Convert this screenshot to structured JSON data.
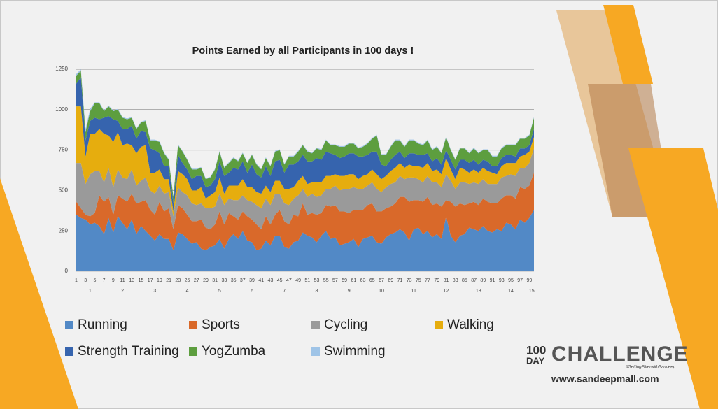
{
  "chart_data": {
    "type": "stacked_area",
    "title": "Points Earned by all Participants in 100 days !",
    "categories": [
      1,
      null,
      3,
      null,
      5,
      null,
      7,
      null,
      9,
      null,
      11,
      null,
      13,
      null,
      15,
      null,
      17,
      null,
      19,
      null,
      21,
      null,
      23,
      null,
      25,
      null,
      27,
      null,
      29,
      null,
      31,
      null,
      33,
      null,
      35,
      null,
      37,
      null,
      39,
      null,
      41,
      null,
      43,
      null,
      45,
      null,
      47,
      null,
      49,
      null,
      51,
      null,
      53,
      null,
      55,
      null,
      57,
      null,
      59,
      null,
      61,
      null,
      63,
      null,
      65,
      null,
      67,
      null,
      69,
      null,
      71,
      null,
      73,
      null,
      75,
      null,
      77,
      null,
      79,
      null,
      81,
      null,
      83,
      null,
      85,
      null,
      87,
      null,
      89,
      null,
      91,
      null,
      93,
      null,
      95,
      null,
      97,
      null,
      99,
      null
    ],
    "weeks": [
      1,
      2,
      3,
      4,
      5,
      6,
      7,
      8,
      9,
      10,
      11,
      12,
      13,
      14,
      15
    ],
    "ylim": [
      0,
      1250
    ],
    "yticks": [
      0,
      250,
      500,
      750,
      1000,
      1250
    ],
    "grid": true,
    "series": [
      {
        "name": "Running",
        "color": "#5289c6",
        "values": [
          350,
          330,
          320,
          290,
          300,
          280,
          230,
          330,
          240,
          340,
          300,
          260,
          320,
          230,
          280,
          250,
          220,
          190,
          230,
          200,
          200,
          130,
          240,
          230,
          200,
          170,
          180,
          140,
          130,
          150,
          160,
          200,
          140,
          200,
          230,
          200,
          250,
          190,
          180,
          130,
          140,
          190,
          160,
          220,
          220,
          150,
          140,
          180,
          190,
          240,
          220,
          210,
          180,
          220,
          250,
          200,
          210,
          160,
          170,
          180,
          200,
          150,
          200,
          210,
          220,
          180,
          170,
          210,
          230,
          240,
          260,
          240,
          190,
          260,
          270,
          230,
          250,
          210,
          230,
          200,
          340,
          220,
          180,
          220,
          230,
          270,
          260,
          250,
          280,
          250,
          240,
          260,
          250,
          300,
          290,
          260,
          320,
          300,
          330,
          380
        ]
      },
      {
        "name": "Sports",
        "color": "#d9692a",
        "values": [
          80,
          60,
          30,
          50,
          60,
          190,
          200,
          130,
          110,
          130,
          150,
          170,
          160,
          190,
          150,
          190,
          160,
          160,
          200,
          170,
          190,
          130,
          170,
          160,
          150,
          140,
          130,
          180,
          140,
          110,
          130,
          170,
          150,
          160,
          110,
          120,
          120,
          150,
          140,
          160,
          120,
          150,
          130,
          130,
          160,
          160,
          150,
          170,
          150,
          180,
          130,
          150,
          170,
          140,
          160,
          200,
          200,
          210,
          200,
          180,
          180,
          230,
          180,
          200,
          200,
          190,
          200,
          180,
          170,
          180,
          200,
          220,
          240,
          180,
          170,
          200,
          210,
          200,
          190,
          200,
          100,
          210,
          220,
          200,
          180,
          150,
          170,
          160,
          170,
          180,
          180,
          160,
          200,
          170,
          180,
          190,
          200,
          210,
          200,
          230
        ]
      },
      {
        "name": "Cycling",
        "color": "#9a9a9a",
        "values": [
          240,
          280,
          190,
          260,
          260,
          150,
          120,
          180,
          170,
          160,
          130,
          140,
          150,
          110,
          130,
          140,
          120,
          130,
          100,
          110,
          100,
          80,
          110,
          100,
          120,
          110,
          100,
          100,
          120,
          130,
          110,
          110,
          120,
          90,
          100,
          120,
          100,
          100,
          110,
          120,
          130,
          110,
          120,
          130,
          100,
          110,
          120,
          100,
          130,
          90,
          110,
          120,
          110,
          110,
          100,
          110,
          120,
          130,
          140,
          150,
          140,
          130,
          130,
          120,
          130,
          140,
          120,
          130,
          140,
          130,
          130,
          110,
          150,
          140,
          130,
          120,
          130,
          140,
          130,
          120,
          160,
          130,
          110,
          130,
          140,
          120,
          120,
          130,
          120,
          110,
          120,
          120,
          130,
          120,
          130,
          140,
          120,
          130,
          140,
          150
        ]
      },
      {
        "name": "Walking",
        "color": "#e6ad0e",
        "values": [
          350,
          350,
          170,
          250,
          230,
          260,
          300,
          200,
          280,
          230,
          200,
          220,
          150,
          200,
          210,
          200,
          110,
          130,
          100,
          90,
          80,
          30,
          100,
          110,
          100,
          80,
          90,
          100,
          60,
          80,
          90,
          100,
          70,
          80,
          90,
          90,
          100,
          80,
          90,
          80,
          90,
          80,
          80,
          80,
          80,
          90,
          100,
          70,
          90,
          80,
          80,
          70,
          90,
          80,
          80,
          80,
          70,
          90,
          80,
          90,
          80,
          60,
          80,
          70,
          80,
          90,
          80,
          70,
          80,
          90,
          80,
          70,
          80,
          70,
          80,
          90,
          80,
          70,
          80,
          80,
          100,
          70,
          60,
          90,
          80,
          70,
          80,
          70,
          70,
          80,
          70,
          60,
          70,
          80,
          70,
          80,
          70,
          80,
          70,
          70
        ]
      },
      {
        "name": "Strength Training",
        "color": "#3664ae",
        "values": [
          140,
          180,
          100,
          80,
          100,
          60,
          100,
          120,
          140,
          70,
          100,
          90,
          120,
          90,
          100,
          80,
          150,
          140,
          100,
          80,
          80,
          50,
          100,
          70,
          60,
          70,
          90,
          70,
          70,
          60,
          80,
          100,
          110,
          80,
          110,
          100,
          110,
          90,
          140,
          110,
          100,
          120,
          100,
          120,
          130,
          100,
          150,
          140,
          120,
          130,
          140,
          130,
          150,
          140,
          150,
          140,
          120,
          110,
          120,
          130,
          130,
          140,
          120,
          120,
          110,
          140,
          90,
          60,
          70,
          80,
          70,
          60,
          70,
          80,
          70,
          80,
          60,
          60,
          70,
          60,
          50,
          60,
          60,
          50,
          60,
          60,
          60,
          50,
          50,
          60,
          40,
          50,
          50,
          50,
          50,
          40,
          50,
          40,
          40,
          50
        ]
      },
      {
        "name": "YogZumba",
        "color": "#5d9e3f",
        "values": [
          50,
          40,
          50,
          60,
          90,
          100,
          40,
          60,
          50,
          70,
          70,
          60,
          50,
          60,
          50,
          70,
          50,
          60,
          70,
          80,
          40,
          40,
          60,
          70,
          60,
          60,
          40,
          50,
          50,
          50,
          60,
          60,
          50,
          60,
          60,
          50,
          50,
          60,
          60,
          60,
          50,
          50,
          60,
          60,
          60,
          50,
          50,
          50,
          60,
          60,
          60,
          50,
          60,
          60,
          70,
          50,
          60,
          70,
          60,
          60,
          60,
          50,
          60,
          70,
          80,
          100,
          60,
          70,
          80,
          90,
          70,
          70,
          80,
          80,
          70,
          60,
          80,
          70,
          70,
          70,
          80,
          60,
          60,
          70,
          70,
          60,
          70,
          70,
          60,
          70,
          60,
          60,
          60,
          60,
          60,
          70,
          60,
          60,
          60,
          70
        ]
      },
      {
        "name": "Swimming",
        "color": "#9fc4e7",
        "values": [
          10,
          10,
          20,
          15,
          5,
          5,
          5,
          5,
          5,
          5,
          5,
          5,
          5,
          5,
          5,
          5,
          5,
          5,
          5,
          5,
          5,
          5,
          5,
          5,
          5,
          5,
          5,
          5,
          5,
          5,
          5,
          5,
          5,
          5,
          5,
          5,
          5,
          5,
          5,
          5,
          5,
          5,
          5,
          5,
          5,
          5,
          5,
          5,
          5,
          5,
          5,
          5,
          5,
          5,
          5,
          5,
          5,
          5,
          5,
          5,
          5,
          5,
          5,
          5,
          5,
          5,
          5,
          5,
          5,
          5,
          5,
          5,
          5,
          5,
          5,
          5,
          5,
          5,
          5,
          5,
          5,
          5,
          5,
          5,
          5,
          5,
          5,
          5,
          5,
          5,
          5,
          5,
          5,
          5,
          5,
          5,
          5,
          5,
          5,
          5
        ]
      }
    ]
  },
  "branding": {
    "logo_top": "100",
    "logo_bottom": "DAY",
    "logo_word": "CHALLENGE",
    "hashtag": "#GettingFitterwithSandeep",
    "website": "www.sandeepmall.com"
  }
}
